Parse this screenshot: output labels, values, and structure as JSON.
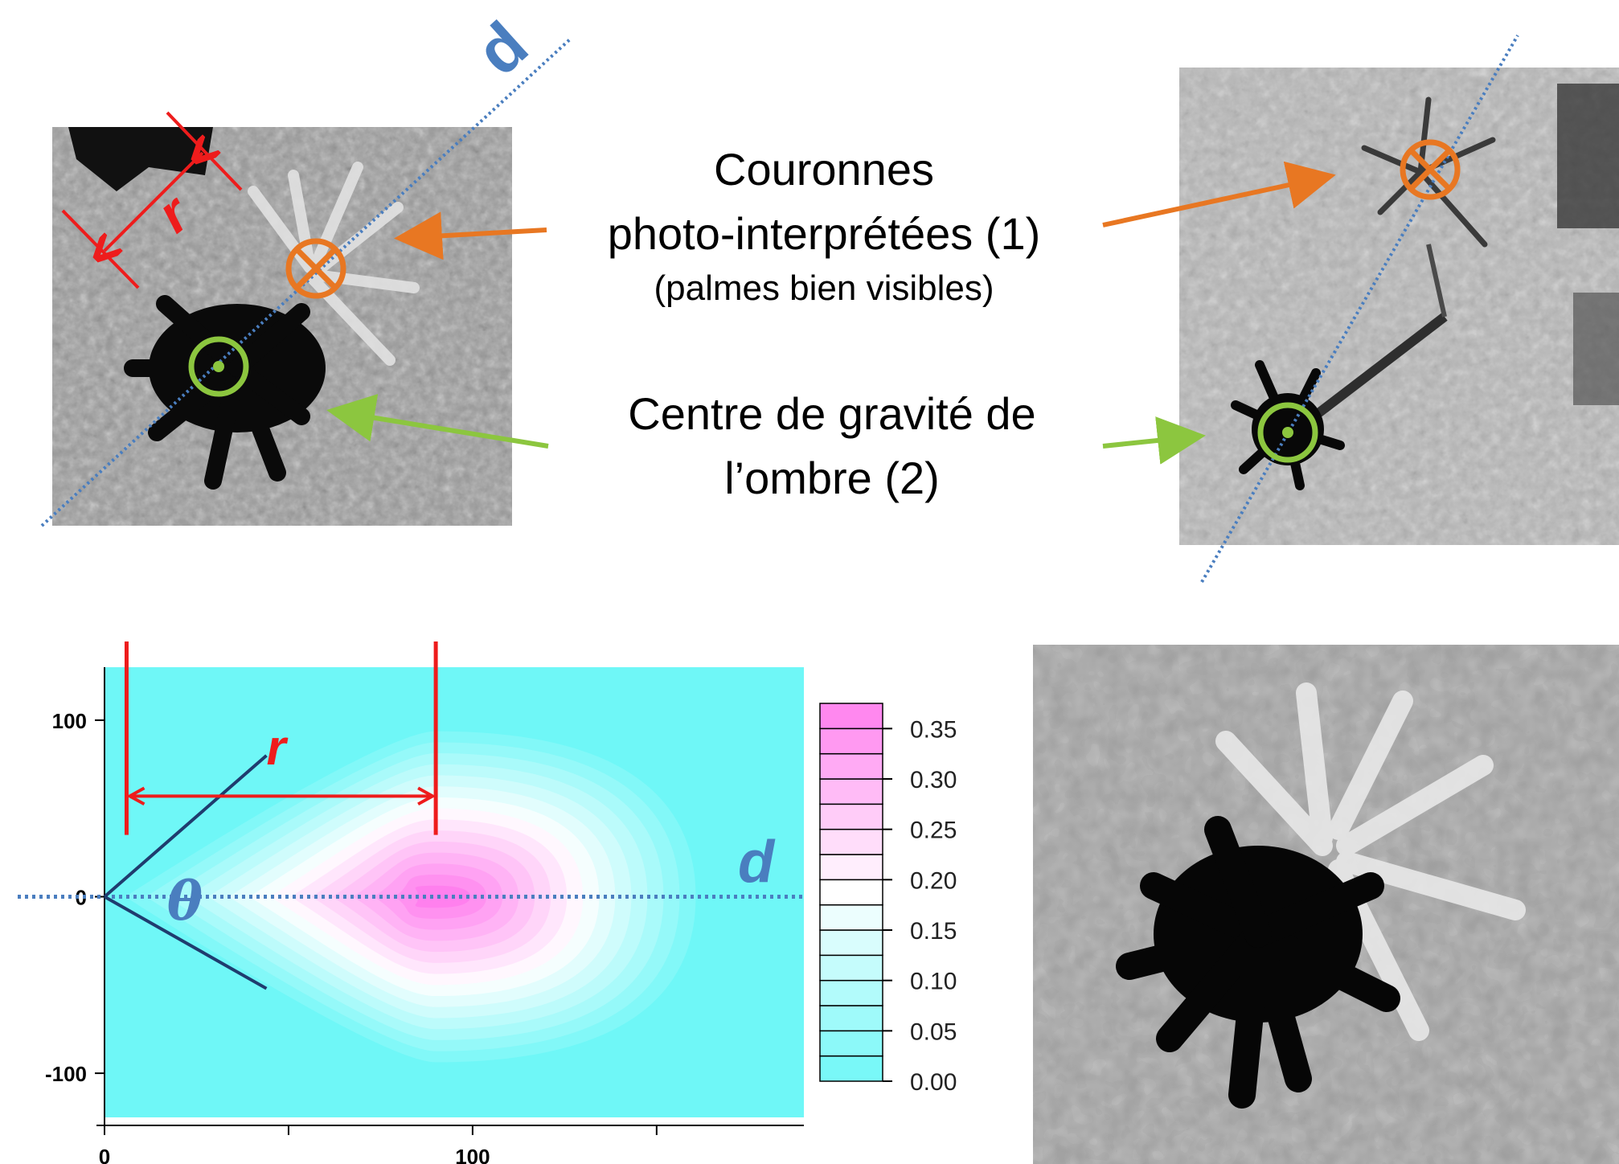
{
  "annotations": {
    "crowns_line1": "Couronnes",
    "crowns_line2": "photo-interprétées (1)",
    "crowns_note": "(palmes bien visibles)",
    "shadow_line1": "Centre de gravité de",
    "shadow_line2": "l’ombre (2)"
  },
  "symbols": {
    "distance": "d",
    "radius": "r",
    "angle": "θ",
    "crown_marker": "⊗"
  },
  "colors": {
    "crown_marker": "#e87722",
    "shadow_marker": "#8cc63f",
    "axis_line": "#4a7ebf",
    "measure": "#ee1c1c",
    "heatmap_low": "#6ff7f7",
    "heatmap_high": "#ff80ee",
    "dark_line": "#1f3c6e"
  },
  "chart_data": {
    "type": "heatmap",
    "title": "",
    "xlabel": "",
    "ylabel": "",
    "xlim": [
      0,
      190
    ],
    "ylim": [
      -125,
      130
    ],
    "x_ticks": [
      0,
      100
    ],
    "y_ticks": [
      100,
      0,
      -100
    ],
    "colorbar": {
      "min": 0.0,
      "max": 0.375,
      "step": 0.025,
      "labels": [
        "0.35",
        "0.30",
        "0.25",
        "0.20",
        "0.15",
        "0.10",
        "0.05",
        "0.00"
      ],
      "label_values": [
        0.35,
        0.3,
        0.25,
        0.2,
        0.15,
        0.1,
        0.05,
        0.0
      ]
    },
    "max_density": 0.375,
    "peak_x": 90,
    "extent_x": 150,
    "half_width_y": 100,
    "r_marker_x": [
      6,
      90
    ],
    "theta_line_slope": 0.78
  }
}
